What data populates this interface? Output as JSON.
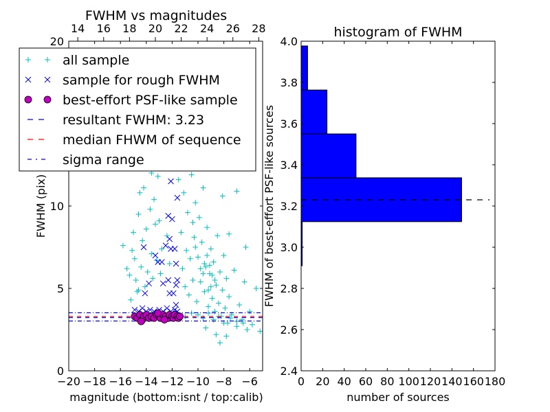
{
  "chart_data": [
    {
      "type": "scatter",
      "title": "FWHM vs magnitudes",
      "xlabel": "magnitude (bottom:isnt / top:calib)",
      "ylabel": "FWHM (pix)",
      "xlim": [
        -20,
        -5
      ],
      "ylim": [
        0,
        20
      ],
      "xticks": [
        "−20",
        "−18",
        "−16",
        "−14",
        "−12",
        "−10",
        "−8",
        "−6"
      ],
      "xtick_values": [
        -20,
        -18,
        -16,
        -14,
        -12,
        -10,
        -8,
        -6
      ],
      "yticks": [
        "0",
        "5",
        "10",
        "20"
      ],
      "ytick_values": [
        0,
        5,
        10,
        20
      ],
      "top_xticks": [
        "14",
        "16",
        "18",
        "20",
        "22",
        "24",
        "26",
        "28"
      ],
      "top_xtick_values": [
        14,
        16,
        18,
        20,
        22,
        24,
        26,
        28
      ],
      "top_offset": 33.3,
      "legend": {
        "placement": "upper-left",
        "entries": [
          {
            "label": "all sample",
            "marker": "+",
            "color": "#00bfbf"
          },
          {
            "label": "sample for rough FWHM",
            "marker": "x",
            "color": "#0000ff"
          },
          {
            "label": "best-effort PSF-like sample",
            "marker": "o",
            "color": "#bf00bf"
          },
          {
            "label": "resultant FWHM: 3.23",
            "line": "dashed",
            "color": "#0000ff"
          },
          {
            "label": "median FHWM of sequence",
            "line": "dashed",
            "color": "#ff0000"
          },
          {
            "label": "sigma range",
            "line": "dashdot",
            "color": "#0000ff"
          }
        ]
      },
      "hlines": [
        {
          "y": 3.23,
          "color": "#0000ff",
          "style": "dashed"
        },
        {
          "y": 3.3,
          "color": "#ff0000",
          "style": "dashed"
        },
        {
          "y": 3.02,
          "color": "#0000ff",
          "style": "dashdot"
        },
        {
          "y": 3.52,
          "color": "#0000ff",
          "style": "dashdot"
        }
      ],
      "series": [
        {
          "name": "all sample",
          "marker": "+",
          "color": "#00bfbf",
          "points": [
            [
              -15.8,
              7.6
            ],
            [
              -15.5,
              6.2
            ],
            [
              -15.3,
              5.8
            ],
            [
              -15.1,
              7.3
            ],
            [
              -15.0,
              8.4
            ],
            [
              -14.9,
              6.8
            ],
            [
              -14.8,
              5.5
            ],
            [
              -14.7,
              4.8
            ],
            [
              -14.6,
              9.5
            ],
            [
              -14.5,
              10.8
            ],
            [
              -14.4,
              6.3
            ],
            [
              -14.3,
              7.9
            ],
            [
              -14.2,
              11.1
            ],
            [
              -14.1,
              5.1
            ],
            [
              -14.0,
              8.6
            ],
            [
              -13.9,
              6.0
            ],
            [
              -13.8,
              12.4
            ],
            [
              -13.7,
              9.8
            ],
            [
              -13.6,
              7.1
            ],
            [
              -13.5,
              5.6
            ],
            [
              -13.4,
              10.4
            ],
            [
              -13.3,
              8.9
            ],
            [
              -13.2,
              6.7
            ],
            [
              -13.1,
              11.8
            ],
            [
              -13.0,
              9.1
            ],
            [
              -12.9,
              5.9
            ],
            [
              -12.8,
              7.4
            ],
            [
              -12.6,
              13.0
            ],
            [
              -12.4,
              8.2
            ],
            [
              -12.2,
              6.5
            ],
            [
              -15.2,
              4.3
            ],
            [
              -14.6,
              4.9
            ],
            [
              -13.6,
              12.0
            ],
            [
              -12.0,
              12.8
            ],
            [
              -11.3,
              8.4
            ],
            [
              -11.2,
              6.2
            ],
            [
              -11.1,
              10.8
            ],
            [
              -11.0,
              5.1
            ],
            [
              -10.9,
              7.3
            ],
            [
              -10.8,
              9.6
            ],
            [
              -10.7,
              4.6
            ],
            [
              -10.6,
              6.8
            ],
            [
              -10.5,
              11.9
            ],
            [
              -10.4,
              5.5
            ],
            [
              -10.3,
              8.1
            ],
            [
              -10.2,
              10.2
            ],
            [
              -10.1,
              4.2
            ],
            [
              -10.0,
              6.9
            ],
            [
              -9.9,
              9.3
            ],
            [
              -9.8,
              5.4
            ],
            [
              -9.7,
              7.8
            ],
            [
              -9.6,
              11.1
            ],
            [
              -9.5,
              4.8
            ],
            [
              -9.4,
              6.3
            ],
            [
              -9.3,
              8.7
            ],
            [
              -9.2,
              3.9
            ],
            [
              -9.1,
              5.9
            ],
            [
              -9.0,
              7.4
            ],
            [
              -8.9,
              4.4
            ],
            [
              -8.8,
              6.6
            ],
            [
              -8.7,
              3.6
            ],
            [
              -8.6,
              5.2
            ],
            [
              -8.5,
              8.2
            ],
            [
              -8.4,
              4.1
            ],
            [
              -8.3,
              6.0
            ],
            [
              -8.2,
              3.3
            ],
            [
              -8.1,
              4.9
            ],
            [
              -8.0,
              7.0
            ],
            [
              -7.9,
              3.8
            ],
            [
              -7.8,
              5.6
            ],
            [
              -7.7,
              2.9
            ],
            [
              -7.6,
              4.5
            ],
            [
              -7.4,
              3.4
            ],
            [
              -7.2,
              6.1
            ],
            [
              -7.0,
              2.7
            ],
            [
              -6.8,
              4.0
            ],
            [
              -6.6,
              3.1
            ],
            [
              -6.4,
              5.4
            ],
            [
              -6.2,
              2.5
            ],
            [
              -6.0,
              3.6
            ],
            [
              -5.8,
              2.8
            ],
            [
              -5.5,
              5.0
            ],
            [
              -5.2,
              2.4
            ],
            [
              -10.0,
              3.4
            ],
            [
              -9.6,
              3.2
            ],
            [
              -9.2,
              3.5
            ],
            [
              -8.8,
              3.1
            ],
            [
              -8.4,
              3.3
            ],
            [
              -8.0,
              2.9
            ],
            [
              -7.5,
              3.2
            ],
            [
              -7.0,
              3.0
            ],
            [
              -6.5,
              2.9
            ],
            [
              -11.0,
              3.3
            ],
            [
              -10.5,
              3.5
            ],
            [
              -9.4,
              2.6
            ],
            [
              -8.6,
              2.2
            ],
            [
              -8.3,
              1.7
            ],
            [
              -7.8,
              2.1
            ],
            [
              -9.5,
              6.5
            ],
            [
              -9.3,
              7.0
            ],
            [
              -9.1,
              6.4
            ],
            [
              -8.9,
              5.8
            ],
            [
              -9.6,
              5.9
            ],
            [
              -9.8,
              6.2
            ],
            [
              -9.0,
              5.1
            ],
            [
              -8.7,
              5.5
            ],
            [
              -9.2,
              4.9
            ],
            [
              -10.2,
              7.5
            ],
            [
              -10.4,
              9.0
            ],
            [
              -9.9,
              12.5
            ],
            [
              -10.6,
              12.8
            ],
            [
              -11.5,
              11.6
            ],
            [
              -6.3,
              7.5
            ],
            [
              -7.6,
              8.3
            ],
            [
              -8.1,
              10.6
            ],
            [
              -9.4,
              13.2
            ],
            [
              -7.0,
              10.9
            ]
          ]
        },
        {
          "name": "sample for rough FWHM",
          "marker": "x",
          "color": "#0000ff",
          "points": [
            [
              -14.9,
              3.7
            ],
            [
              -14.6,
              3.6
            ],
            [
              -14.3,
              3.8
            ],
            [
              -14.0,
              3.6
            ],
            [
              -13.7,
              3.7
            ],
            [
              -13.4,
              3.6
            ],
            [
              -13.0,
              3.7
            ],
            [
              -12.7,
              3.6
            ],
            [
              -12.4,
              3.8
            ],
            [
              -12.1,
              3.6
            ],
            [
              -11.8,
              3.7
            ],
            [
              -11.6,
              3.6
            ],
            [
              -14.2,
              7.5
            ],
            [
              -14.1,
              4.7
            ],
            [
              -13.8,
              5.3
            ],
            [
              -13.3,
              7.0
            ],
            [
              -13.1,
              6.6
            ],
            [
              -12.8,
              6.6
            ],
            [
              -12.7,
              5.3
            ],
            [
              -12.5,
              7.6
            ],
            [
              -12.3,
              9.4
            ],
            [
              -12.2,
              8.0
            ],
            [
              -12.1,
              7.4
            ],
            [
              -12.0,
              9.2
            ],
            [
              -11.9,
              4.7
            ],
            [
              -11.8,
              7.4
            ],
            [
              -11.7,
              6.5
            ],
            [
              -11.6,
              5.5
            ],
            [
              -11.6,
              10.5
            ],
            [
              -12.3,
              5.5
            ],
            [
              -12.2,
              4.7
            ],
            [
              -11.7,
              4.0
            ],
            [
              -12.1,
              11.5
            ],
            [
              -11.7,
              5.2
            ]
          ]
        },
        {
          "name": "best-effort PSF-like sample",
          "marker": "o",
          "color": "#bf00bf",
          "points": [
            [
              -14.9,
              3.3
            ],
            [
              -14.7,
              3.2
            ],
            [
              -14.5,
              3.4
            ],
            [
              -14.3,
              3.1
            ],
            [
              -14.2,
              3.3
            ],
            [
              -14.0,
              3.4
            ],
            [
              -13.8,
              3.2
            ],
            [
              -13.6,
              3.3
            ],
            [
              -13.4,
              3.2
            ],
            [
              -13.2,
              3.4
            ],
            [
              -13.0,
              3.3
            ],
            [
              -12.9,
              3.2
            ],
            [
              -12.7,
              3.4
            ],
            [
              -12.5,
              3.3
            ],
            [
              -12.3,
              3.2
            ],
            [
              -12.2,
              3.4
            ],
            [
              -12.0,
              3.3
            ],
            [
              -11.9,
              3.2
            ],
            [
              -11.8,
              3.4
            ],
            [
              -11.6,
              3.3
            ],
            [
              -11.5,
              3.2
            ],
            [
              -14.4,
              3.0
            ],
            [
              -13.1,
              3.5
            ],
            [
              -12.6,
              3.1
            ],
            [
              -11.4,
              3.3
            ]
          ]
        }
      ]
    },
    {
      "type": "bar",
      "orientation": "horizontal",
      "title": "histogram of FWHM",
      "xlabel": "number of sources",
      "ylabel": "FWHM of best-effort PSF-like sources",
      "xlim": [
        0,
        180
      ],
      "ylim": [
        2.4,
        4.0
      ],
      "xticks": [
        "0",
        "20",
        "40",
        "60",
        "80",
        "100",
        "120",
        "140",
        "160",
        "180"
      ],
      "xtick_values": [
        0,
        20,
        40,
        60,
        80,
        100,
        120,
        140,
        160,
        180
      ],
      "yticks": [
        "2.4",
        "2.6",
        "2.8",
        "3.0",
        "3.2",
        "3.4",
        "3.6",
        "3.8",
        "4.0"
      ],
      "ytick_values": [
        2.4,
        2.6,
        2.8,
        3.0,
        3.2,
        3.4,
        3.6,
        3.8,
        4.0
      ],
      "bin_edges": [
        2.91,
        3.124,
        3.337,
        3.55,
        3.763,
        3.977
      ],
      "values": [
        1,
        149,
        51,
        24,
        6
      ],
      "color": "#0000ff",
      "hline": {
        "y": 3.23,
        "xmax": 175,
        "color": "#000000",
        "style": "dashed"
      }
    }
  ]
}
